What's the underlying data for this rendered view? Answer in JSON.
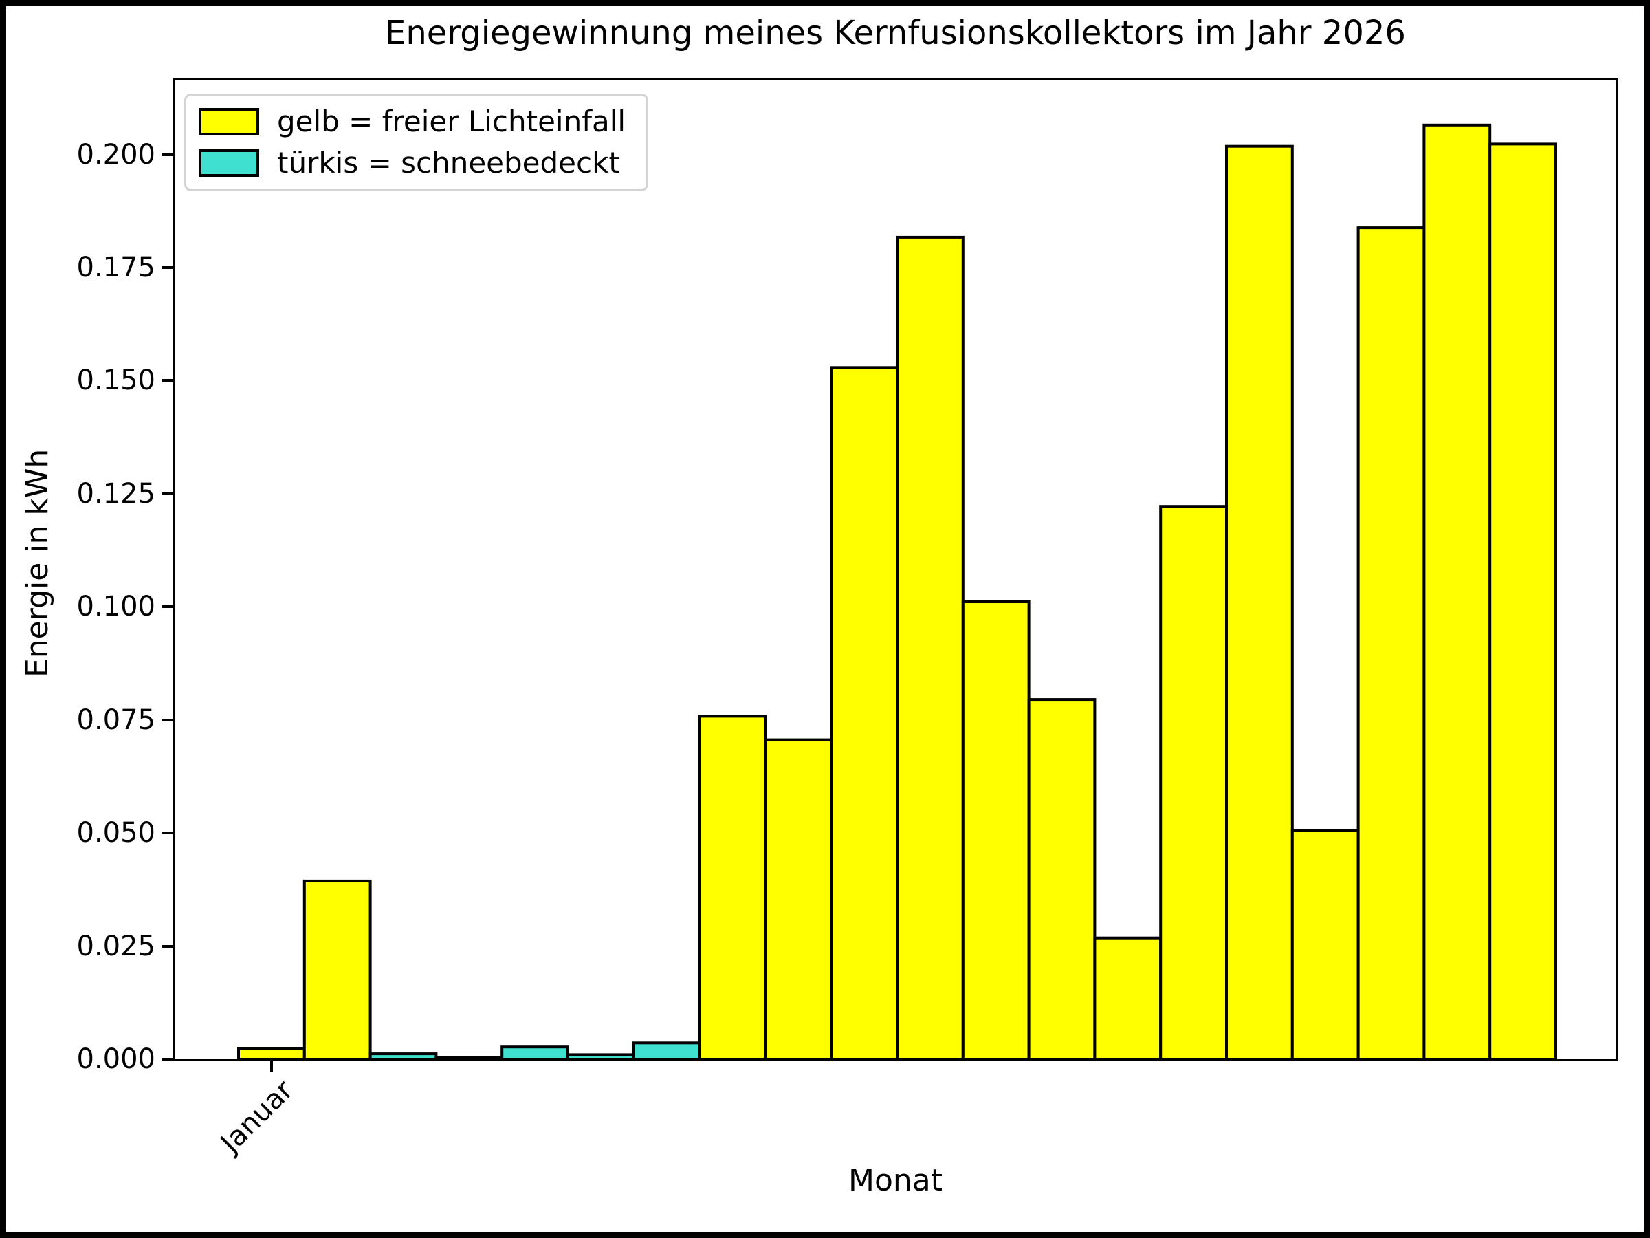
{
  "title": "Energiegewinnung meines Kernfusionskollektors im Jahr 2026",
  "legend": {
    "items": [
      {
        "label": "gelb = freier Lichteinfall",
        "color": "#ffff00"
      },
      {
        "label": "türkis = schneebedeckt",
        "color": "#40e0d0"
      }
    ]
  },
  "chart_data": {
    "type": "bar",
    "title": "Energiegewinnung meines Kernfusionskollektors im Jahr 2026",
    "xlabel": "Monat",
    "ylabel": "Energie in kWh",
    "ylim": [
      0,
      0.2165
    ],
    "grid": false,
    "legend_position": "upper left",
    "y_tick_labels": [
      "0.000",
      "0.025",
      "0.050",
      "0.075",
      "0.100",
      "0.125",
      "0.150",
      "0.175",
      "0.200"
    ],
    "x_ticks": [
      {
        "bar_index": 0,
        "label": "Januar"
      }
    ],
    "series_legend": [
      {
        "key": "frei",
        "name": "gelb = freier Lichteinfall",
        "color": "#ffff00"
      },
      {
        "key": "schnee",
        "name": "türkis = schneebedeckt",
        "color": "#40e0d0"
      }
    ],
    "colors": {
      "frei": "#ffff00",
      "schnee": "#40e0d0",
      "edge": "#000000"
    },
    "bars": [
      {
        "value": 0.0023,
        "key": "frei"
      },
      {
        "value": 0.0394,
        "key": "frei"
      },
      {
        "value": 0.0012,
        "key": "schnee"
      },
      {
        "value": 0.0004,
        "key": "schnee"
      },
      {
        "value": 0.0027,
        "key": "schnee"
      },
      {
        "value": 0.001,
        "key": "schnee"
      },
      {
        "value": 0.0036,
        "key": "schnee"
      },
      {
        "value": 0.0758,
        "key": "frei"
      },
      {
        "value": 0.0706,
        "key": "frei"
      },
      {
        "value": 0.1529,
        "key": "frei"
      },
      {
        "value": 0.1817,
        "key": "frei"
      },
      {
        "value": 0.1011,
        "key": "frei"
      },
      {
        "value": 0.0795,
        "key": "frei"
      },
      {
        "value": 0.0268,
        "key": "frei"
      },
      {
        "value": 0.1222,
        "key": "frei"
      },
      {
        "value": 0.2018,
        "key": "frei"
      },
      {
        "value": 0.0506,
        "key": "frei"
      },
      {
        "value": 0.1838,
        "key": "frei"
      },
      {
        "value": 0.2065,
        "key": "frei"
      },
      {
        "value": 0.2023,
        "key": "frei"
      }
    ]
  }
}
